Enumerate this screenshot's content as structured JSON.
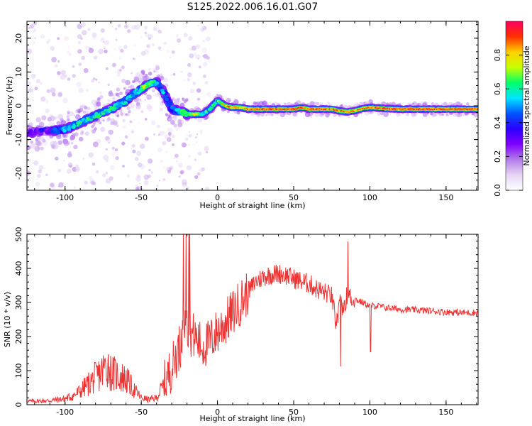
{
  "figure_title": "S125.2022.006.16.01.G07",
  "chart_data": [
    {
      "type": "heatmap",
      "title": "",
      "xlabel": "Height of straight line (km)",
      "ylabel": "Frequency (Hz)",
      "xlim": [
        -125,
        171
      ],
      "ylim": [
        -25,
        25
      ],
      "xticks": [
        -100,
        -50,
        0,
        50,
        100,
        150
      ],
      "yticks": [
        -20,
        -10,
        0,
        10,
        20
      ],
      "grid": false,
      "colormap": [
        "#ffffff",
        "#e6d5f5",
        "#b37be8",
        "#7f00ff",
        "#2b00ff",
        "#0055ff",
        "#00e5ff",
        "#00ff6a",
        "#c8ff00",
        "#ffd000",
        "#ff3000",
        "#ff0060"
      ],
      "colorbar": {
        "label": "Normalized spectral amplitude",
        "range": [
          0,
          1
        ],
        "ticks": [
          0.0,
          0.2,
          0.4,
          0.6,
          0.8
        ]
      },
      "ridge": {
        "x": [
          -125,
          -110,
          -100,
          -90,
          -80,
          -70,
          -60,
          -55,
          -50,
          -45,
          -40,
          -35,
          -30,
          -25,
          -20,
          -15,
          -10,
          -5,
          0,
          5,
          10,
          15,
          20,
          30,
          40,
          50,
          55,
          60,
          70,
          75,
          80,
          85,
          90,
          95,
          100,
          110,
          120,
          150,
          170
        ],
        "frequency": [
          -8,
          -7.5,
          -7,
          -5,
          -3,
          -1,
          1.5,
          3.5,
          5,
          6.5,
          7,
          4,
          -1,
          -1.5,
          -2.5,
          -2.5,
          -2.5,
          -1,
          1.5,
          0,
          -0.5,
          -0.5,
          -1,
          -1,
          -1,
          -1,
          -0.5,
          -1,
          -1,
          -1,
          -1.5,
          -1.8,
          -1.5,
          -0.8,
          -0.5,
          -0.8,
          -1,
          -1,
          -1
        ],
        "amplitude": [
          0.2,
          0.3,
          0.45,
          0.55,
          0.55,
          0.6,
          0.5,
          0.45,
          0.6,
          0.7,
          0.5,
          0.45,
          0.4,
          0.5,
          0.65,
          0.7,
          0.6,
          0.55,
          0.55,
          0.8,
          0.85,
          0.7,
          0.85,
          0.9,
          0.9,
          0.9,
          0.88,
          0.85,
          0.85,
          0.85,
          0.88,
          0.85,
          0.8,
          0.8,
          0.85,
          0.9,
          0.9,
          0.9,
          0.9
        ]
      }
    },
    {
      "type": "line",
      "title": "",
      "xlabel": "Height of straight line (km)",
      "ylabel": "SNR (10 * v/v)",
      "xlim": [
        -125,
        171
      ],
      "ylim": [
        0,
        500
      ],
      "xticks": [
        -100,
        -50,
        0,
        50,
        100,
        150
      ],
      "yticks": [
        0,
        100,
        200,
        300,
        400,
        500
      ],
      "grid": false,
      "series": [
        {
          "color": "#ee3333",
          "x": [
            -125,
            -110,
            -100,
            -95,
            -90,
            -85,
            -80,
            -75,
            -72,
            -70,
            -65,
            -60,
            -55,
            -50,
            -45,
            -40,
            -35,
            -30,
            -25,
            -22,
            -20,
            -15,
            -10,
            -5,
            0,
            5,
            10,
            15,
            20,
            25,
            30,
            35,
            40,
            45,
            50,
            55,
            60,
            65,
            70,
            75,
            78,
            80,
            82,
            85,
            90,
            95,
            100,
            105,
            110,
            120,
            130,
            140,
            150,
            160,
            170
          ],
          "values": [
            10,
            12,
            18,
            25,
            40,
            60,
            80,
            100,
            120,
            95,
            85,
            75,
            45,
            20,
            15,
            20,
            60,
            110,
            170,
            200,
            220,
            200,
            170,
            185,
            215,
            240,
            270,
            300,
            330,
            360,
            375,
            382,
            385,
            380,
            370,
            362,
            355,
            340,
            330,
            320,
            230,
            300,
            280,
            320,
            310,
            300,
            290,
            290,
            285,
            280,
            278,
            275,
            272,
            270,
            270
          ]
        }
      ]
    }
  ]
}
